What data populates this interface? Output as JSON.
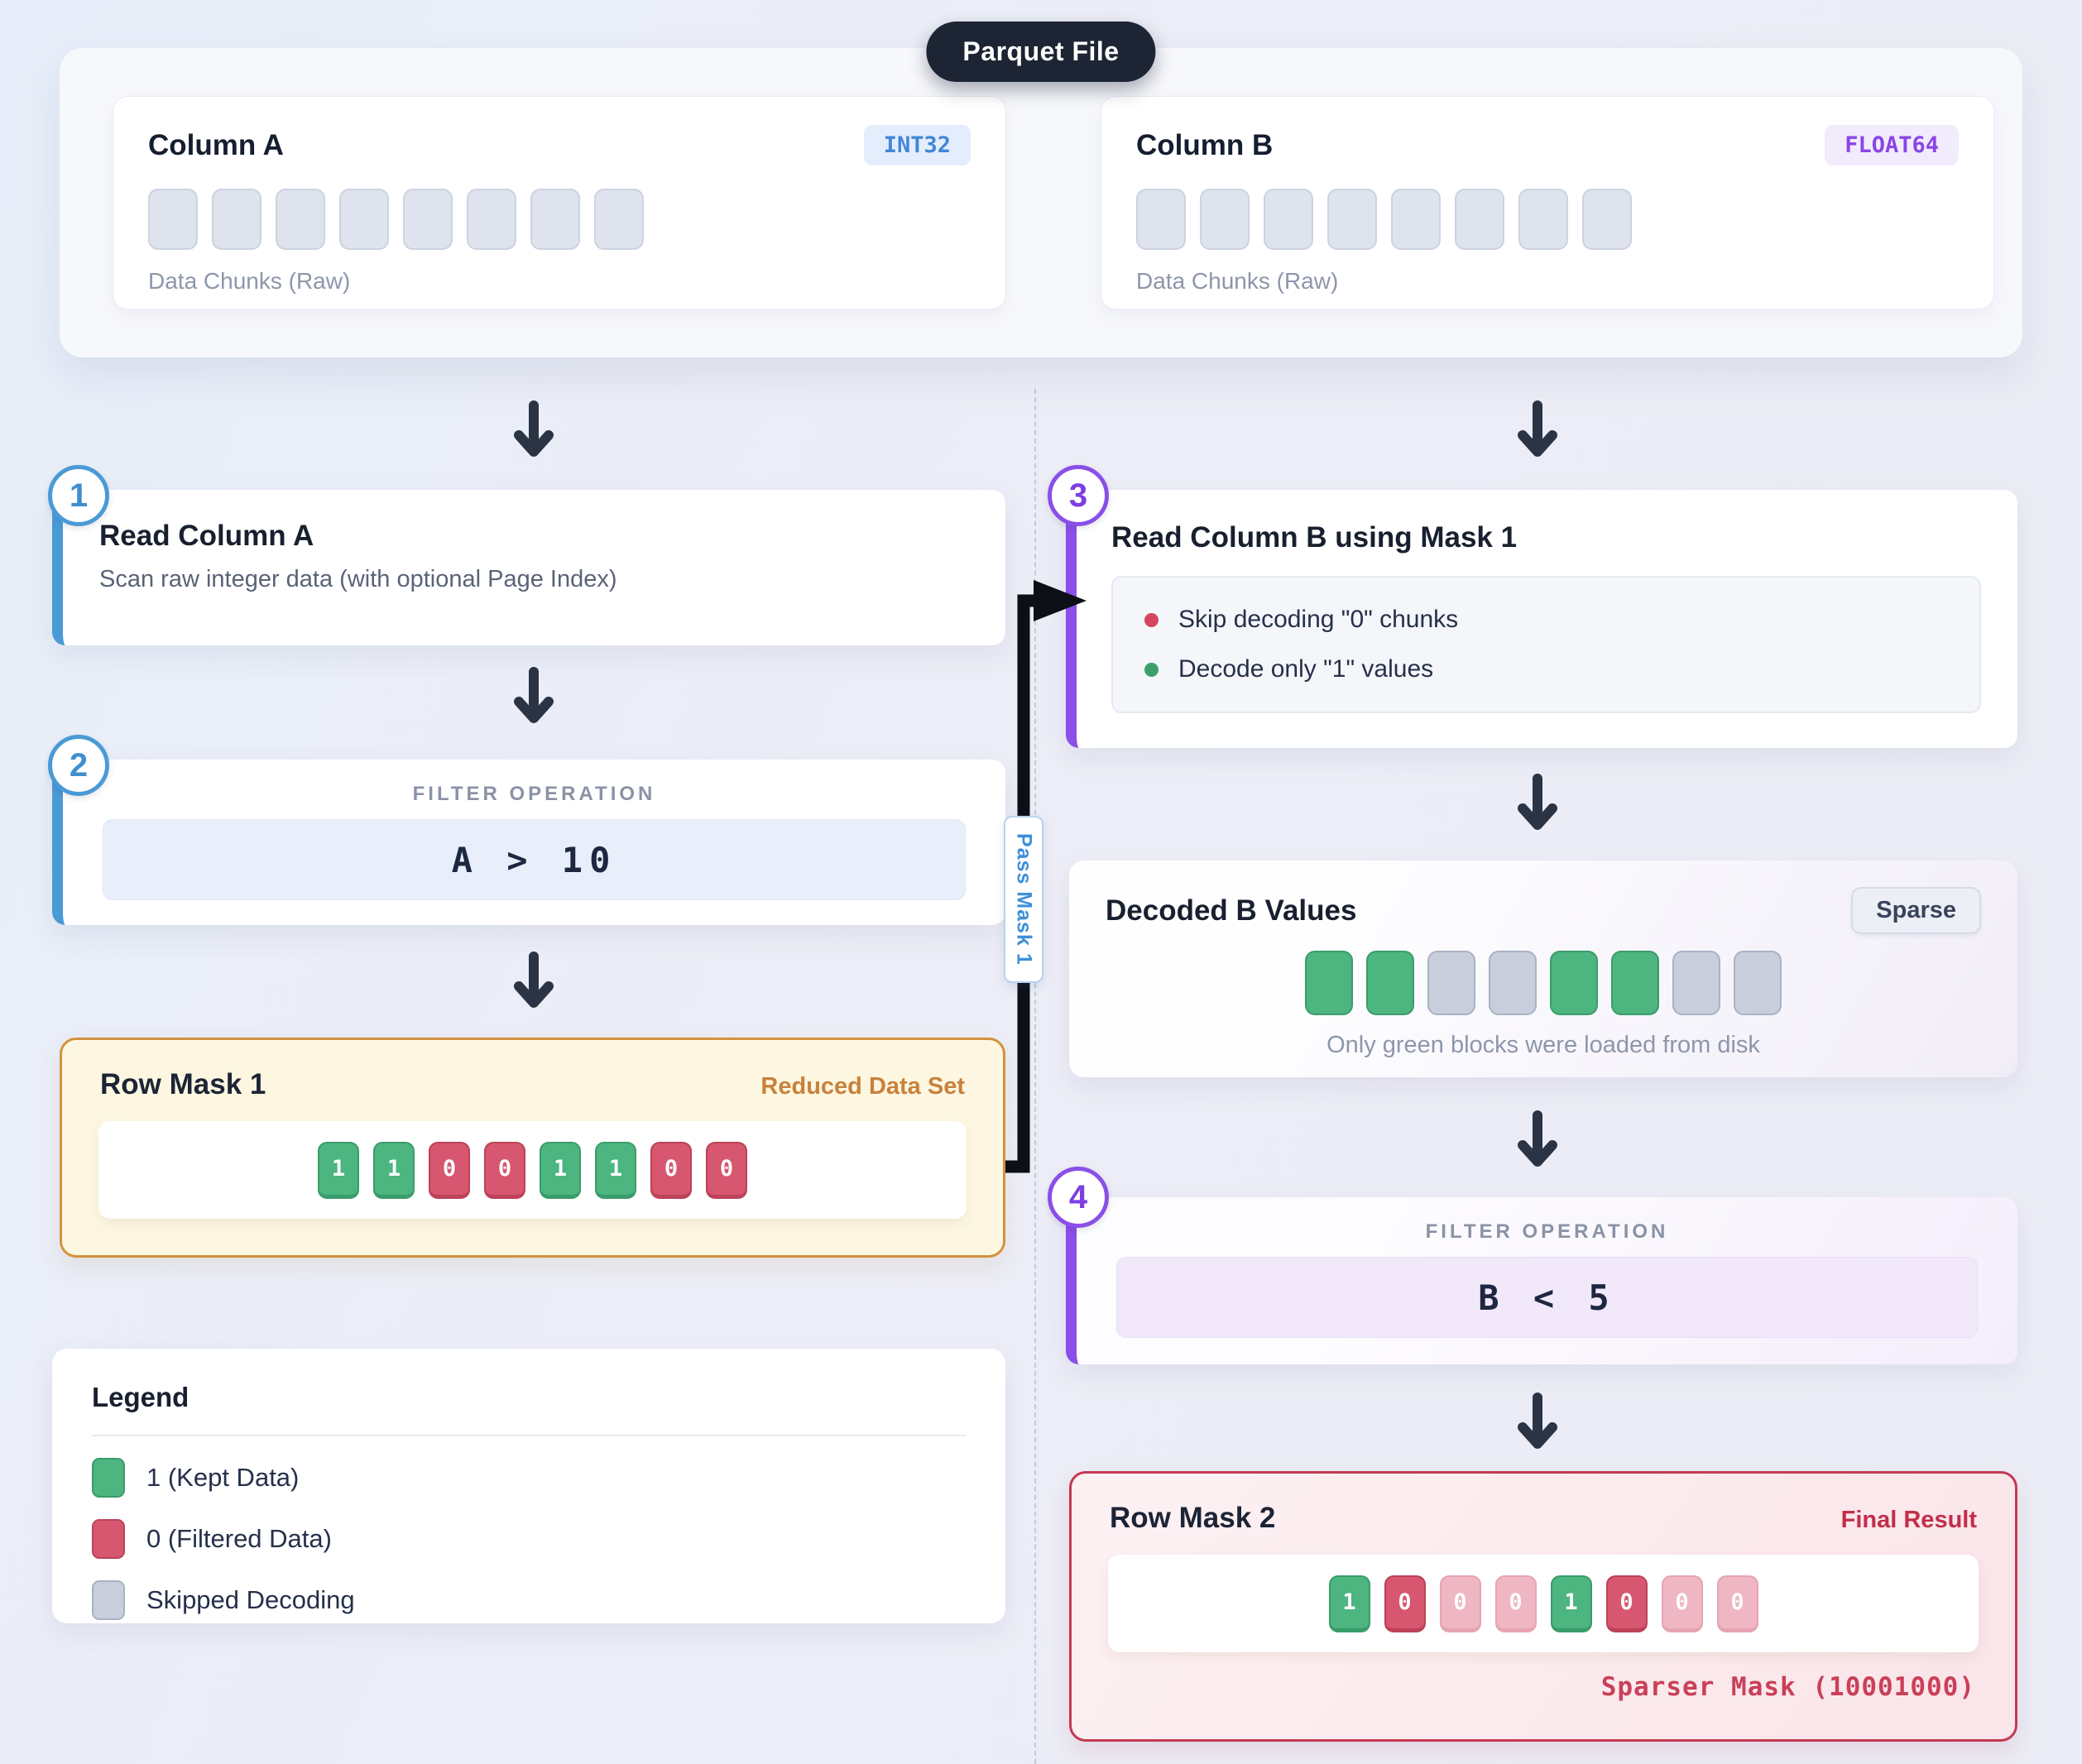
{
  "badge_title": "Parquet File",
  "columns": [
    {
      "title": "Column A",
      "type": "INT32",
      "chunk_count": 8,
      "caption": "Data Chunks (Raw)"
    },
    {
      "title": "Column B",
      "type": "FLOAT64",
      "chunk_count": 8,
      "caption": "Data Chunks (Raw)"
    }
  ],
  "step1": {
    "num": "1",
    "title": "Read Column A",
    "subtitle": "Scan raw integer data (with optional Page Index)"
  },
  "step2": {
    "num": "2",
    "heading": "FILTER OPERATION",
    "expression": "A > 10"
  },
  "step3": {
    "num": "3",
    "title": "Read Column B using Mask 1",
    "bullets": [
      {
        "dot": "red",
        "text": "Skip decoding \"0\" chunks"
      },
      {
        "dot": "green",
        "text": "Decode only \"1\" values"
      }
    ]
  },
  "step4": {
    "num": "4",
    "heading": "FILTER OPERATION",
    "expression": "B < 5"
  },
  "row_mask_1": {
    "title": "Row Mask 1",
    "tag": "Reduced Data Set",
    "bits": [
      {
        "value": "1",
        "state": "kept"
      },
      {
        "value": "1",
        "state": "kept"
      },
      {
        "value": "0",
        "state": "filtered"
      },
      {
        "value": "0",
        "state": "filtered"
      },
      {
        "value": "1",
        "state": "kept"
      },
      {
        "value": "1",
        "state": "kept"
      },
      {
        "value": "0",
        "state": "filtered"
      },
      {
        "value": "0",
        "state": "filtered"
      }
    ]
  },
  "decoded_b": {
    "title": "Decoded B Values",
    "badge": "Sparse",
    "blocks": [
      "loaded",
      "loaded",
      "skipped",
      "skipped",
      "loaded",
      "loaded",
      "skipped",
      "skipped"
    ],
    "caption": "Only green blocks were loaded from disk"
  },
  "row_mask_2": {
    "title": "Row Mask 2",
    "tag": "Final Result",
    "footnote": "Sparser Mask (10001000)",
    "bits": [
      {
        "value": "1",
        "state": "kept"
      },
      {
        "value": "0",
        "state": "filtered"
      },
      {
        "value": "0",
        "state": "faded"
      },
      {
        "value": "0",
        "state": "faded"
      },
      {
        "value": "1",
        "state": "kept"
      },
      {
        "value": "0",
        "state": "filtered"
      },
      {
        "value": "0",
        "state": "faded"
      },
      {
        "value": "0",
        "state": "faded"
      }
    ]
  },
  "legend": {
    "title": "Legend",
    "items": [
      {
        "state": "kept",
        "label": "1 (Kept Data)"
      },
      {
        "state": "filtered",
        "label": "0 (Filtered Data)"
      },
      {
        "state": "skipped",
        "label": "Skipped Decoding"
      }
    ]
  },
  "connector": {
    "label": "Pass Mask 1"
  },
  "colors": {
    "accent_blue": "#4a9ad6",
    "accent_purple": "#8a4fe8",
    "kept_green": "#4db580",
    "filtered_red": "#d6576f",
    "faded_pink": "#efb6c3",
    "skipped_gray": "#c9cedc",
    "mask1_orange": "#d3913c",
    "mask2_red": "#c23a52",
    "int_badge_blue": "#4187d8",
    "float_badge_purple": "#8a45e8",
    "arrow_dark": "#2b3444",
    "connector_black": "#0c0f16"
  }
}
